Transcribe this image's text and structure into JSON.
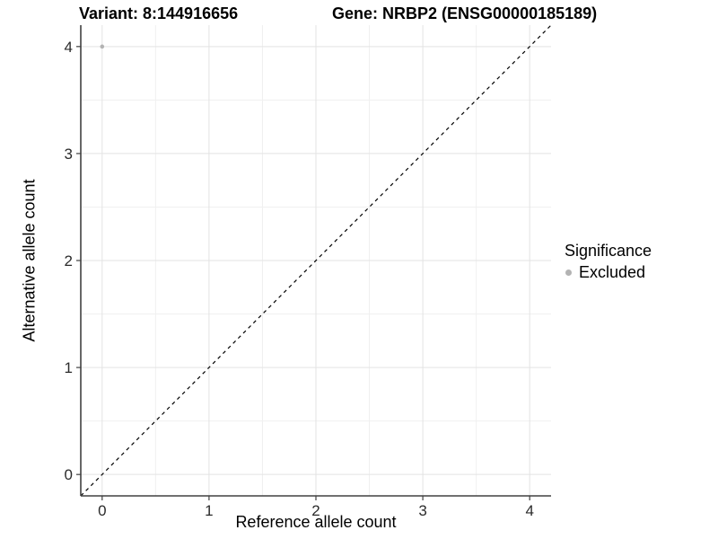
{
  "chart_data": {
    "type": "scatter",
    "titles": {
      "left": "Variant: 8:144916656",
      "right": "Gene: NRBP2 (ENSG00000185189)"
    },
    "xlabel": "Reference allele count",
    "ylabel": "Alternative allele count",
    "xlim": [
      -0.2,
      4.2
    ],
    "ylim": [
      -0.2,
      4.2
    ],
    "xticks": [
      0,
      1,
      2,
      3,
      4
    ],
    "yticks": [
      0,
      1,
      2,
      3,
      4
    ],
    "minor_grid_step": 0.5,
    "grid": "major+minor",
    "series": [
      {
        "name": "Excluded",
        "color": "#b3b3b3",
        "points": [
          {
            "x": 0,
            "y": 4
          }
        ]
      }
    ],
    "reference_line": {
      "kind": "identity y=x",
      "linetype": "dashed",
      "color": "#000000",
      "from": [
        -0.2,
        -0.2
      ],
      "to": [
        4.2,
        4.2
      ]
    },
    "legend": {
      "title": "Significance",
      "position": "right",
      "items": [
        {
          "label": "Excluded",
          "color": "#b3b3b3",
          "marker": "circle"
        }
      ]
    },
    "style": {
      "background": "#ffffff",
      "grid_major_color": "#e3e3e3",
      "grid_minor_color": "#f0f0f0",
      "axis_color": "#404040",
      "tick_color": "#404040",
      "tick_label_color": "#2b2b2b",
      "point_radius_px": 2.3
    }
  }
}
